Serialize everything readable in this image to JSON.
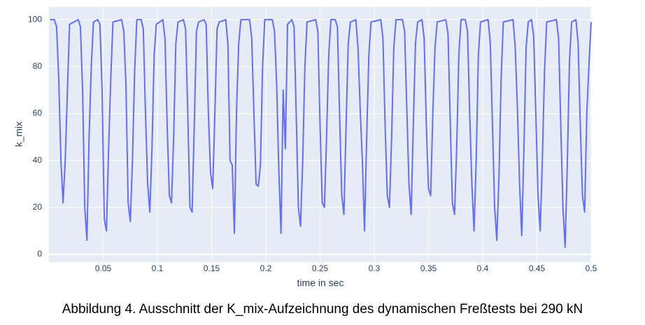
{
  "chart_data": {
    "type": "line",
    "caption": "Abbildung 4. Ausschnitt der K_mix-Aufzeichnung des dynamischen Freßtests bei 290 kN",
    "x_label": "time in sec",
    "y_label": "k_mix",
    "color": "#636efa",
    "grid": true,
    "xlim": [
      0,
      0.5
    ],
    "ylim": [
      -3.3,
      105.4
    ],
    "xticks": [
      0.05,
      0.1,
      0.15,
      0.2,
      0.25,
      0.3,
      0.35,
      0.4,
      0.45,
      0.5
    ],
    "yticks": [
      0,
      20,
      40,
      60,
      80,
      100
    ],
    "x": [
      0.001,
      0.003,
      0.005,
      0.007,
      0.009,
      0.011,
      0.013,
      0.015,
      0.017,
      0.019,
      0.027,
      0.029,
      0.031,
      0.033,
      0.035,
      0.037,
      0.039,
      0.041,
      0.045,
      0.047,
      0.049,
      0.051,
      0.053,
      0.055,
      0.057,
      0.059,
      0.067,
      0.069,
      0.071,
      0.073,
      0.075,
      0.077,
      0.079,
      0.081,
      0.085,
      0.087,
      0.089,
      0.091,
      0.093,
      0.095,
      0.097,
      0.099,
      0.105,
      0.107,
      0.109,
      0.111,
      0.113,
      0.115,
      0.117,
      0.119,
      0.124,
      0.126,
      0.128,
      0.13,
      0.132,
      0.134,
      0.136,
      0.138,
      0.143,
      0.145,
      0.147,
      0.149,
      0.151,
      0.153,
      0.155,
      0.157,
      0.163,
      0.165,
      0.167,
      0.169,
      0.171,
      0.173,
      0.175,
      0.177,
      0.185,
      0.187,
      0.189,
      0.191,
      0.193,
      0.195,
      0.197,
      0.199,
      0.206,
      0.208,
      0.21,
      0.212,
      0.214,
      0.216,
      0.218,
      0.22,
      0.224,
      0.226,
      0.228,
      0.23,
      0.232,
      0.234,
      0.236,
      0.238,
      0.246,
      0.248,
      0.25,
      0.252,
      0.254,
      0.256,
      0.258,
      0.26,
      0.264,
      0.266,
      0.268,
      0.27,
      0.272,
      0.274,
      0.276,
      0.278,
      0.283,
      0.285,
      0.287,
      0.289,
      0.291,
      0.293,
      0.295,
      0.297,
      0.306,
      0.308,
      0.31,
      0.312,
      0.314,
      0.316,
      0.318,
      0.32,
      0.326,
      0.328,
      0.33,
      0.332,
      0.334,
      0.336,
      0.338,
      0.34,
      0.344,
      0.346,
      0.348,
      0.35,
      0.352,
      0.354,
      0.356,
      0.358,
      0.366,
      0.368,
      0.37,
      0.372,
      0.374,
      0.376,
      0.378,
      0.38,
      0.384,
      0.386,
      0.388,
      0.39,
      0.392,
      0.394,
      0.396,
      0.398,
      0.405,
      0.407,
      0.409,
      0.411,
      0.413,
      0.415,
      0.417,
      0.419,
      0.428,
      0.43,
      0.432,
      0.434,
      0.436,
      0.438,
      0.44,
      0.442,
      0.445,
      0.447,
      0.449,
      0.451,
      0.453,
      0.455,
      0.457,
      0.459,
      0.468,
      0.47,
      0.472,
      0.474,
      0.476,
      0.478,
      0.48,
      0.482,
      0.486,
      0.488,
      0.49,
      0.492,
      0.494,
      0.496,
      0.498,
      0.5
    ],
    "values": [
      100,
      100,
      100,
      97,
      75,
      40,
      22,
      40,
      70,
      98,
      100,
      97,
      70,
      20,
      6,
      50,
      80,
      99,
      100,
      98,
      70,
      15,
      10,
      45,
      75,
      99,
      100,
      95,
      72,
      22,
      14,
      40,
      78,
      100,
      100,
      96,
      60,
      30,
      18,
      45,
      85,
      98,
      100,
      92,
      55,
      25,
      22,
      50,
      90,
      99,
      100,
      96,
      60,
      20,
      18,
      55,
      95,
      99,
      100,
      98,
      60,
      35,
      28,
      60,
      96,
      99,
      100,
      90,
      40,
      38,
      9,
      62,
      90,
      100,
      100,
      92,
      60,
      30,
      29,
      38,
      80,
      100,
      100,
      95,
      72,
      35,
      9,
      70,
      45,
      98,
      100,
      97,
      60,
      20,
      12,
      40,
      80,
      99,
      100,
      95,
      55,
      22,
      20,
      50,
      85,
      100,
      100,
      97,
      60,
      25,
      17,
      55,
      90,
      99,
      100,
      88,
      62,
      40,
      10,
      50,
      85,
      99,
      100,
      92,
      55,
      25,
      20,
      50,
      88,
      100,
      100,
      95,
      62,
      30,
      17,
      55,
      90,
      99,
      100,
      92,
      55,
      28,
      25,
      60,
      88,
      99,
      100,
      94,
      58,
      22,
      17,
      45,
      85,
      100,
      100,
      95,
      60,
      30,
      10,
      40,
      85,
      99,
      100,
      90,
      55,
      20,
      6,
      33,
      75,
      99,
      100,
      88,
      62,
      30,
      8,
      45,
      88,
      99,
      100,
      93,
      60,
      25,
      10,
      40,
      78,
      99,
      100,
      92,
      55,
      20,
      3,
      38,
      82,
      99,
      100,
      90,
      55,
      25,
      18,
      60,
      81,
      99
    ]
  }
}
